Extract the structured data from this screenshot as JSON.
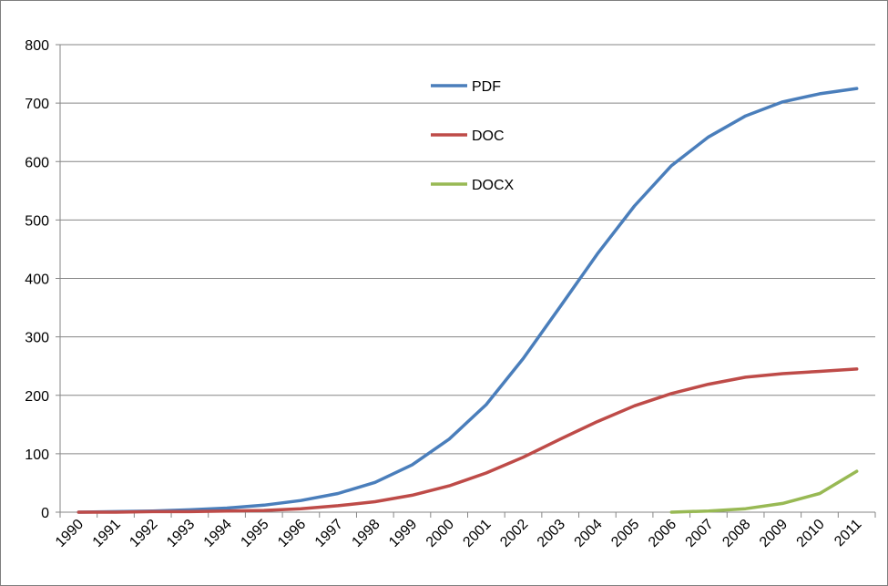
{
  "chart_data": {
    "type": "line",
    "title": "",
    "xlabel": "",
    "ylabel": "",
    "ylim": [
      0,
      800
    ],
    "yticks": [
      0,
      100,
      200,
      300,
      400,
      500,
      600,
      700,
      800
    ],
    "categories": [
      "1990",
      "1991",
      "1992",
      "1993",
      "1994",
      "1995",
      "1996",
      "1997",
      "1998",
      "1999",
      "2000",
      "2001",
      "2002",
      "2003",
      "2004",
      "2005",
      "2006",
      "2007",
      "2008",
      "2009",
      "2010",
      "2011"
    ],
    "grid": "horizontal",
    "legend_position": "top-center",
    "series": [
      {
        "name": "PDF",
        "color": "#4a7ebb",
        "values": [
          0,
          1,
          2,
          4,
          7,
          12,
          20,
          32,
          51,
          81,
          125,
          184,
          263,
          352,
          442,
          524,
          593,
          642,
          678,
          702,
          716,
          725
        ]
      },
      {
        "name": "DOC",
        "color": "#be4b48",
        "values": [
          0,
          0,
          1,
          1,
          2,
          3,
          6,
          11,
          18,
          29,
          45,
          67,
          94,
          125,
          155,
          182,
          203,
          219,
          231,
          237,
          241,
          245
        ]
      },
      {
        "name": "DOCX",
        "color": "#98b954",
        "values": [
          null,
          null,
          null,
          null,
          null,
          null,
          null,
          null,
          null,
          null,
          null,
          null,
          null,
          null,
          null,
          null,
          0,
          2,
          6,
          15,
          32,
          70
        ]
      }
    ]
  }
}
